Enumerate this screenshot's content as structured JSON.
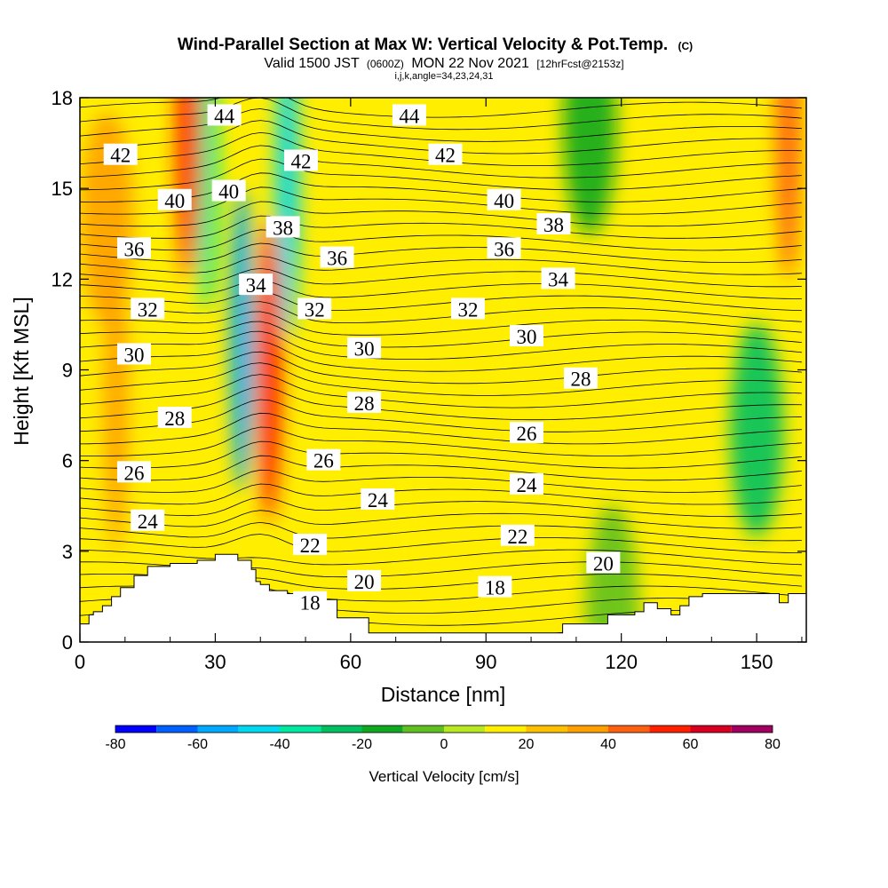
{
  "chart_data": {
    "type": "heatmap",
    "title": "Wind-Parallel Section at Max W: Vertical Velocity & Pot.Temp.",
    "title_mark": "(C)",
    "subtitle_parts": [
      "Valid 1500 JST",
      "(0600Z)",
      "MON 22 Nov 2021",
      "[12hrFcst@2153z]"
    ],
    "subtitle_line2": "i,j,k,angle=34,23,24,31",
    "xlabel": "Distance [nm]",
    "ylabel": "Height [Kft MSL]",
    "xlim": [
      0,
      161
    ],
    "ylim": [
      0,
      18
    ],
    "x_ticks": [
      "0",
      "30",
      "60",
      "90",
      "120",
      "150"
    ],
    "y_ticks": [
      "0",
      "3",
      "6",
      "9",
      "12",
      "15",
      "18"
    ],
    "colorbar": {
      "label": "Vertical Velocity [cm/s]",
      "range": [
        -80,
        80
      ],
      "step": 10,
      "tick_labels": [
        "-80",
        "-60",
        "-40",
        "-20",
        "0",
        "20",
        "40",
        "60",
        "80"
      ],
      "colors": [
        "#0000ff",
        "#0060ff",
        "#00a8ff",
        "#00d8f0",
        "#00e8a0",
        "#00c060",
        "#10a820",
        "#60c020",
        "#b8e820",
        "#ffee00",
        "#ffc000",
        "#ffa000",
        "#ff6010",
        "#ff2000",
        "#d80020",
        "#a00060"
      ]
    },
    "terrain_kft": [
      [
        0,
        0.6
      ],
      [
        2,
        0.6
      ],
      [
        2,
        0.9
      ],
      [
        3,
        0.9
      ],
      [
        3,
        1.0
      ],
      [
        5,
        1.0
      ],
      [
        5,
        1.2
      ],
      [
        7,
        1.2
      ],
      [
        7,
        1.5
      ],
      [
        9,
        1.5
      ],
      [
        9,
        1.8
      ],
      [
        12,
        1.8
      ],
      [
        12,
        2.2
      ],
      [
        15,
        2.2
      ],
      [
        15,
        2.5
      ],
      [
        20,
        2.5
      ],
      [
        20,
        2.6
      ],
      [
        26,
        2.6
      ],
      [
        26,
        2.7
      ],
      [
        30,
        2.7
      ],
      [
        30,
        2.9
      ],
      [
        35,
        2.9
      ],
      [
        35,
        2.7
      ],
      [
        38,
        2.7
      ],
      [
        38,
        2.4
      ],
      [
        39,
        2.4
      ],
      [
        39,
        2.0
      ],
      [
        40,
        2.0
      ],
      [
        40,
        1.9
      ],
      [
        42,
        1.9
      ],
      [
        42,
        1.7
      ],
      [
        46,
        1.7
      ],
      [
        46,
        1.6
      ],
      [
        54,
        1.6
      ],
      [
        54,
        1.4
      ],
      [
        57,
        1.4
      ],
      [
        57,
        0.8
      ],
      [
        64,
        0.8
      ],
      [
        64,
        0.3
      ],
      [
        72,
        0.3
      ],
      [
        72,
        0.3
      ],
      [
        107,
        0.3
      ],
      [
        107,
        0.6
      ],
      [
        117,
        0.6
      ],
      [
        117,
        0.9
      ],
      [
        123,
        0.9
      ],
      [
        123,
        1.0
      ],
      [
        125,
        1.0
      ],
      [
        125,
        1.3
      ],
      [
        128,
        1.3
      ],
      [
        128,
        1.1
      ],
      [
        131,
        1.1
      ],
      [
        131,
        0.9
      ],
      [
        133,
        0.9
      ],
      [
        133,
        1.2
      ],
      [
        135,
        1.2
      ],
      [
        135,
        1.5
      ],
      [
        138,
        1.5
      ],
      [
        138,
        1.6
      ],
      [
        155,
        1.6
      ],
      [
        155,
        1.3
      ],
      [
        157,
        1.3
      ],
      [
        157,
        1.6
      ],
      [
        161,
        1.6
      ]
    ],
    "w_features": [
      {
        "x": 36,
        "y": 10,
        "w": -60
      },
      {
        "x": 46,
        "y": 15,
        "w": -50
      },
      {
        "x": 28,
        "y": 16,
        "w": -40
      },
      {
        "x": 42,
        "y": 9,
        "w": 50
      },
      {
        "x": 24,
        "y": 17,
        "w": 50
      },
      {
        "x": 8,
        "y": 8,
        "w": 35
      },
      {
        "x": 6,
        "y": 14,
        "w": 30
      },
      {
        "x": 150,
        "y": 7,
        "w": -25
      },
      {
        "x": 113,
        "y": 17,
        "w": -15
      },
      {
        "x": 157,
        "y": 17,
        "w": 45
      },
      {
        "x": 72,
        "y": 5,
        "w": 18
      },
      {
        "x": 95,
        "y": 11,
        "w": 15
      },
      {
        "x": 118,
        "y": 1,
        "w": -10
      }
    ],
    "theta_contour_labels": [
      {
        "text": "44",
        "x": 32,
        "y": 17.4
      },
      {
        "text": "44",
        "x": 73,
        "y": 17.4
      },
      {
        "text": "42",
        "x": 9,
        "y": 16.1
      },
      {
        "text": "42",
        "x": 49,
        "y": 15.9
      },
      {
        "text": "42",
        "x": 81,
        "y": 16.1
      },
      {
        "text": "40",
        "x": 21,
        "y": 14.6
      },
      {
        "text": "40",
        "x": 33,
        "y": 14.9
      },
      {
        "text": "40",
        "x": 94,
        "y": 14.6
      },
      {
        "text": "38",
        "x": 45,
        "y": 13.7
      },
      {
        "text": "38",
        "x": 105,
        "y": 13.8
      },
      {
        "text": "36",
        "x": 12,
        "y": 13.0
      },
      {
        "text": "36",
        "x": 57,
        "y": 12.7
      },
      {
        "text": "36",
        "x": 94,
        "y": 13.0
      },
      {
        "text": "34",
        "x": 39,
        "y": 11.8
      },
      {
        "text": "34",
        "x": 106,
        "y": 12.0
      },
      {
        "text": "32",
        "x": 15,
        "y": 11.0
      },
      {
        "text": "32",
        "x": 52,
        "y": 11.0
      },
      {
        "text": "32",
        "x": 86,
        "y": 11.0
      },
      {
        "text": "30",
        "x": 12,
        "y": 9.5
      },
      {
        "text": "30",
        "x": 63,
        "y": 9.7
      },
      {
        "text": "30",
        "x": 99,
        "y": 10.1
      },
      {
        "text": "28",
        "x": 21,
        "y": 7.4
      },
      {
        "text": "28",
        "x": 63,
        "y": 7.9
      },
      {
        "text": "28",
        "x": 111,
        "y": 8.7
      },
      {
        "text": "26",
        "x": 12,
        "y": 5.6
      },
      {
        "text": "26",
        "x": 54,
        "y": 6.0
      },
      {
        "text": "26",
        "x": 99,
        "y": 6.9
      },
      {
        "text": "24",
        "x": 15,
        "y": 4.0
      },
      {
        "text": "24",
        "x": 66,
        "y": 4.7
      },
      {
        "text": "24",
        "x": 99,
        "y": 5.2
      },
      {
        "text": "22",
        "x": 51,
        "y": 3.2
      },
      {
        "text": "22",
        "x": 97,
        "y": 3.5
      },
      {
        "text": "20",
        "x": 63,
        "y": 2.0
      },
      {
        "text": "20",
        "x": 116,
        "y": 2.6
      },
      {
        "text": "18",
        "x": 51,
        "y": 1.3
      },
      {
        "text": "18",
        "x": 92,
        "y": 1.8
      }
    ]
  }
}
